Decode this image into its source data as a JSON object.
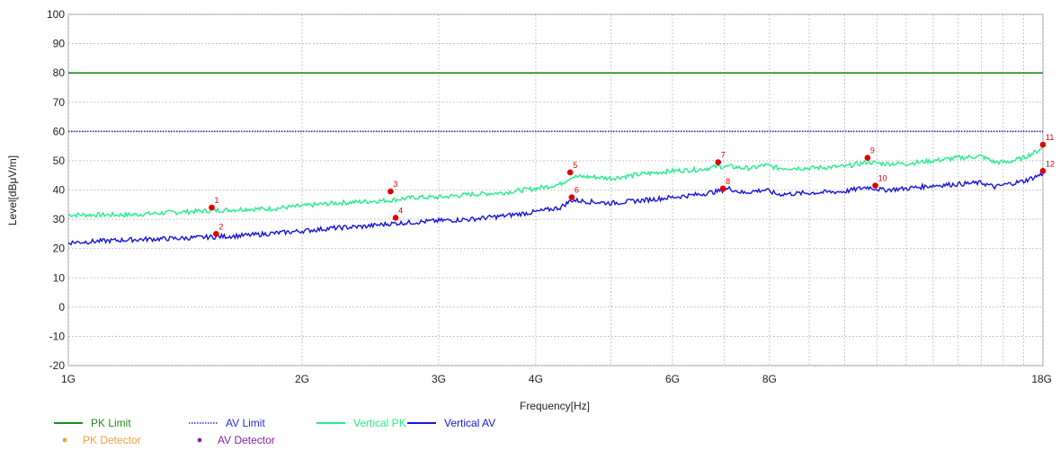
{
  "chart_data": {
    "type": "line",
    "title": "",
    "xlabel": "Frequency[Hz]",
    "ylabel": "Level[dBμV/m]",
    "xscale": "log",
    "xlim": [
      1,
      18
    ],
    "ylim": [
      -20,
      100
    ],
    "x_unit": "GHz",
    "x_ticks": [
      {
        "value": 1,
        "label": "1G"
      },
      {
        "value": 2,
        "label": "2G"
      },
      {
        "value": 3,
        "label": "3G"
      },
      {
        "value": 4,
        "label": "4G"
      },
      {
        "value": 6,
        "label": "6G"
      },
      {
        "value": 8,
        "label": "8G"
      },
      {
        "value": 18,
        "label": "18G"
      }
    ],
    "x_minor_gridlines": [
      5,
      7,
      9,
      10,
      11,
      12,
      13,
      14,
      15,
      16,
      17
    ],
    "y_ticks": [
      100,
      90,
      80,
      70,
      60,
      50,
      40,
      30,
      20,
      10,
      0,
      -10,
      -20
    ],
    "grid": true,
    "limits": [
      {
        "name": "PK Limit",
        "value": 80,
        "color": "#1e8c1e",
        "style": "solid"
      },
      {
        "name": "AV Limit",
        "value": 60,
        "color": "#2a2ae8",
        "style": "dotted"
      }
    ],
    "series": [
      {
        "name": "Vertical PK",
        "color": "#22ee8c",
        "x": [
          1.0,
          1.2,
          1.4,
          1.55,
          1.7,
          1.8,
          2.0,
          2.2,
          2.4,
          2.6,
          2.8,
          3.0,
          3.3,
          3.6,
          4.0,
          4.3,
          4.45,
          4.7,
          5.0,
          5.5,
          6.0,
          6.5,
          6.85,
          7.1,
          7.4,
          7.6,
          7.9,
          8.2,
          9.0,
          10.0,
          10.7,
          11.2,
          12.0,
          13.0,
          14.0,
          15.0,
          15.6,
          16.2,
          17.0,
          17.6,
          18.0
        ],
        "y": [
          31.5,
          31.5,
          32.5,
          33.0,
          33.5,
          33.5,
          34.5,
          35.5,
          36.0,
          36.5,
          37.5,
          37.5,
          38.5,
          39.0,
          40.5,
          42.0,
          44.5,
          44.5,
          44.0,
          45.5,
          46.5,
          47.0,
          48.0,
          48.0,
          47.5,
          47.5,
          48.5,
          47.5,
          47.5,
          48.0,
          49.5,
          49.0,
          49.0,
          50.0,
          51.0,
          51.5,
          49.5,
          49.5,
          51.0,
          53.0,
          54.5
        ]
      },
      {
        "name": "Vertical AV",
        "color": "#1515dc",
        "x": [
          1.0,
          1.2,
          1.4,
          1.55,
          1.7,
          1.8,
          2.0,
          2.2,
          2.4,
          2.6,
          2.8,
          3.0,
          3.3,
          3.6,
          4.0,
          4.3,
          4.45,
          4.7,
          5.0,
          5.5,
          6.0,
          6.5,
          6.85,
          7.1,
          7.4,
          7.6,
          7.9,
          8.2,
          9.0,
          10.0,
          10.7,
          11.2,
          12.0,
          13.0,
          14.0,
          15.0,
          15.6,
          16.2,
          17.0,
          17.6,
          18.0
        ],
        "y": [
          22.0,
          23.0,
          23.5,
          24.0,
          24.5,
          25.0,
          26.0,
          27.0,
          27.5,
          28.5,
          29.0,
          29.5,
          30.0,
          31.0,
          32.5,
          34.0,
          36.5,
          36.0,
          35.5,
          36.5,
          37.5,
          38.5,
          39.5,
          40.5,
          39.0,
          39.5,
          40.0,
          38.5,
          39.0,
          39.5,
          41.0,
          40.0,
          40.5,
          41.5,
          42.0,
          42.5,
          41.0,
          42.0,
          43.0,
          44.5,
          45.5
        ]
      }
    ],
    "markers": [
      {
        "label": "1",
        "x": 1.53,
        "y": 34.0
      },
      {
        "label": "2",
        "x": 1.55,
        "y": 25.0
      },
      {
        "label": "3",
        "x": 2.6,
        "y": 39.5
      },
      {
        "label": "4",
        "x": 2.64,
        "y": 30.5
      },
      {
        "label": "5",
        "x": 4.43,
        "y": 46.0
      },
      {
        "label": "6",
        "x": 4.45,
        "y": 37.5
      },
      {
        "label": "7",
        "x": 6.87,
        "y": 49.5
      },
      {
        "label": "8",
        "x": 6.97,
        "y": 40.5
      },
      {
        "label": "9",
        "x": 10.7,
        "y": 51.0
      },
      {
        "label": "10",
        "x": 10.95,
        "y": 41.5
      },
      {
        "label": "11",
        "x": 18.0,
        "y": 55.5
      },
      {
        "label": "12",
        "x": 18.0,
        "y": 46.5
      }
    ],
    "marker_color": "#e00000",
    "legend": {
      "placement": "bottom-left",
      "items": [
        {
          "label": "PK Limit",
          "kind": "line",
          "color": "#1e8c1e",
          "style": "solid",
          "text_color": "#1e8c1e"
        },
        {
          "label": "AV Limit",
          "kind": "line",
          "color": "#2a2ae8",
          "style": "dotted",
          "text_color": "#2a2ae8"
        },
        {
          "label": "Vertical PK",
          "kind": "line",
          "color": "#22ee8c",
          "style": "solid",
          "text_color": "#22ee8c"
        },
        {
          "label": "Vertical AV",
          "kind": "line",
          "color": "#1515dc",
          "style": "solid",
          "text_color": "#1515dc"
        },
        {
          "label": "PK Detector",
          "kind": "dot",
          "color": "#f2a03c",
          "text_color": "#f2a03c"
        },
        {
          "label": "AV Detector",
          "kind": "dot",
          "color": "#8b1fa8",
          "text_color": "#8b1fa8"
        }
      ]
    }
  }
}
